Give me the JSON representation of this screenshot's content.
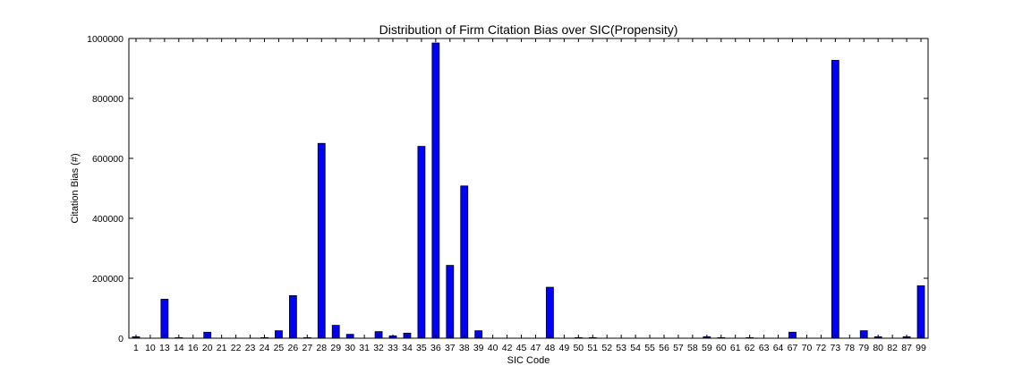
{
  "chart_data": {
    "type": "bar",
    "title": "Distribution of Firm Citation Bias over SIC(Propensity)",
    "xlabel": "SIC Code",
    "ylabel": "Citation Bias (#)",
    "ylim": [
      0,
      1000000
    ],
    "yticks": [
      0,
      200000,
      400000,
      600000,
      800000,
      1000000
    ],
    "grid": false,
    "legend": "none",
    "bar_color": "#0000ff",
    "bar_edge_color": "#000000",
    "categories": [
      "1",
      "10",
      "13",
      "14",
      "16",
      "20",
      "21",
      "22",
      "23",
      "24",
      "25",
      "26",
      "27",
      "28",
      "29",
      "30",
      "31",
      "32",
      "33",
      "34",
      "35",
      "36",
      "37",
      "38",
      "39",
      "40",
      "42",
      "45",
      "47",
      "48",
      "49",
      "50",
      "51",
      "52",
      "53",
      "54",
      "55",
      "56",
      "57",
      "58",
      "59",
      "60",
      "61",
      "62",
      "63",
      "64",
      "67",
      "70",
      "72",
      "73",
      "78",
      "79",
      "80",
      "82",
      "87",
      "99"
    ],
    "values": [
      5000,
      0,
      130000,
      2000,
      0,
      20000,
      0,
      0,
      0,
      2000,
      25000,
      142000,
      2000,
      650000,
      43000,
      13000,
      0,
      22000,
      8000,
      17000,
      640000,
      985000,
      243000,
      508000,
      25000,
      0,
      0,
      0,
      0,
      170000,
      0,
      2000,
      2000,
      0,
      0,
      0,
      0,
      0,
      0,
      0,
      5000,
      2000,
      0,
      2000,
      0,
      0,
      20000,
      0,
      0,
      927000,
      0,
      25000,
      5000,
      0,
      5000,
      175000
    ]
  }
}
